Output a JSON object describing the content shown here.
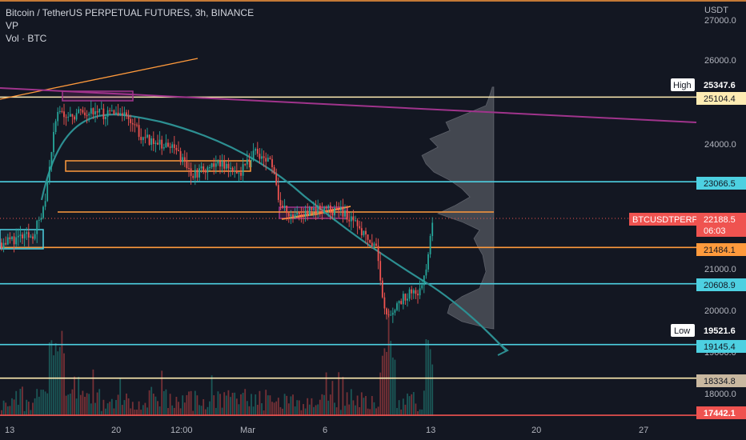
{
  "header": {
    "title": "Bitcoin / TetherUS PERPETUAL FUTURES, 3h, BINANCE",
    "indicator_vp": "VP",
    "indicator_vol": "Vol · BTC"
  },
  "axis": {
    "currency": "USDT",
    "y_ticks": [
      "27000.0",
      "26000.0",
      "24000.0",
      "21000.0",
      "20000.0",
      "19000.0",
      "18000.0"
    ],
    "x_ticks": [
      "13",
      "20",
      "12:00",
      "Mar",
      "6",
      "13",
      "20",
      "27"
    ]
  },
  "price_tags": {
    "high_label": "High",
    "high_value": "25347.6",
    "low_label": "Low",
    "low_value": "19521.6",
    "symbol": "BTCUSDTPERP",
    "last_price": "22188.5",
    "countdown": "06:03",
    "levels": [
      "25104.4",
      "23066.5",
      "21484.1",
      "20608.9",
      "19145.4",
      "18334.8",
      "17442.1"
    ]
  },
  "colors": {
    "background": "#131722",
    "up": "#26a69a",
    "down": "#ef5350",
    "cyan": "#4dd0e1",
    "orange": "#ff9a3c",
    "magenta": "#a0348c",
    "teal_curve": "#2d8f92",
    "cream": "#ffecb3",
    "symbol_tag": "#ef5350"
  },
  "chart_data": {
    "type": "candlestick",
    "symbol": "BTCUSDTPERP",
    "exchange": "BINANCE",
    "interval": "3h",
    "y_unit": "USDT",
    "ylim": [
      17350,
      27050
    ],
    "grid": false,
    "candles_approx": [
      {
        "x": "13",
        "o": 21700,
        "h": 21950,
        "l": 21350,
        "c": 21650
      },
      {
        "x": "15",
        "o": 22100,
        "h": 24600,
        "l": 22000,
        "c": 24450
      },
      {
        "x": "16",
        "o": 24500,
        "h": 25200,
        "l": 24100,
        "c": 24800
      },
      {
        "x": "20",
        "o": 24700,
        "h": 25250,
        "l": 24200,
        "c": 24500
      },
      {
        "x": "21",
        "o": 24400,
        "h": 24900,
        "l": 23500,
        "c": 23700
      },
      {
        "x": "12:00",
        "o": 23700,
        "h": 24300,
        "l": 23500,
        "c": 23800
      },
      {
        "x": "24",
        "o": 23600,
        "h": 23800,
        "l": 22900,
        "c": 23100
      },
      {
        "x": "Mar",
        "o": 23500,
        "h": 24000,
        "l": 23200,
        "c": 23400
      },
      {
        "x": "3",
        "o": 22400,
        "h": 22600,
        "l": 21950,
        "c": 22350
      },
      {
        "x": "6",
        "o": 22400,
        "h": 22650,
        "l": 22150,
        "c": 22300
      },
      {
        "x": "8",
        "o": 21900,
        "h": 22100,
        "l": 21500,
        "c": 21600
      },
      {
        "x": "10",
        "o": 20300,
        "h": 20700,
        "l": 19521.6,
        "c": 19900
      },
      {
        "x": "11",
        "o": 20200,
        "h": 20800,
        "l": 19950,
        "c": 20500
      },
      {
        "x": "12",
        "o": 20600,
        "h": 21500,
        "l": 20500,
        "c": 21400
      },
      {
        "x": "13",
        "o": 21500,
        "h": 22600,
        "l": 21400,
        "c": 22188.5
      }
    ],
    "high": 25347.6,
    "low": 19521.6,
    "last": 22188.5,
    "horizontal_levels": [
      {
        "value": 25104.4,
        "color": "#ffecb3"
      },
      {
        "value": 23066.5,
        "color": "#4dd0e1"
      },
      {
        "value": 21484.1,
        "color": "#ff9a3c"
      },
      {
        "value": 20608.9,
        "color": "#4dd0e1"
      },
      {
        "value": 19145.4,
        "color": "#4dd0e1"
      },
      {
        "value": 18334.8,
        "color": "#ffecb3"
      },
      {
        "value": 17442.1,
        "color": "#ef5350"
      }
    ],
    "legend": "none"
  }
}
